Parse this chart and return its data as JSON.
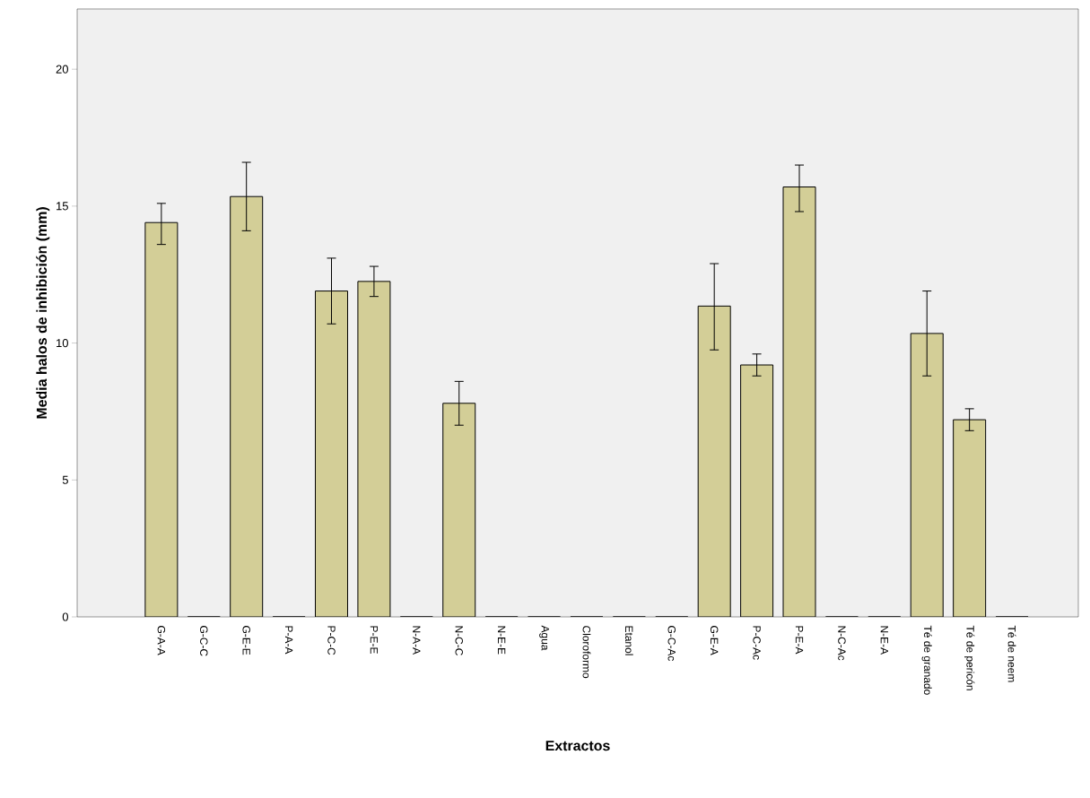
{
  "chart_data": {
    "type": "bar",
    "xlabel": "Extractos",
    "ylabel": "Media halos de inhibición (mm)",
    "categories": [
      "G-A-A",
      "G-C-C",
      "G-E-E",
      "P-A-A",
      "P-C-C",
      "P-E-E",
      "N-A-A",
      "N-C-C",
      "N-E-E",
      "Agua",
      "Cloroformo",
      "Etanol",
      "G-C-Ac",
      "G-E-A",
      "P-C-Ac",
      "P-E-A",
      "N-C-Ac",
      "N-E-A",
      "Té de granado",
      "Té de pericón",
      "Té de neem"
    ],
    "values": [
      14.4,
      0,
      15.35,
      0,
      11.9,
      12.25,
      0,
      7.8,
      0,
      0,
      0,
      0,
      0,
      11.35,
      9.2,
      15.7,
      0,
      0,
      10.35,
      7.2,
      0
    ],
    "errors": [
      [
        13.6,
        15.1
      ],
      null,
      [
        14.1,
        16.6
      ],
      null,
      [
        10.7,
        13.1
      ],
      [
        11.7,
        12.8
      ],
      null,
      [
        7.0,
        8.6
      ],
      null,
      null,
      null,
      null,
      null,
      [
        9.75,
        12.9
      ],
      [
        8.8,
        9.6
      ],
      [
        14.8,
        16.5
      ],
      null,
      null,
      [
        8.8,
        11.9
      ],
      [
        6.8,
        7.6
      ],
      null
    ],
    "color": "#d3ce97",
    "ylim": [
      0,
      22.2
    ],
    "yticks": [
      0,
      5,
      10,
      15,
      20
    ],
    "grid": false
  }
}
